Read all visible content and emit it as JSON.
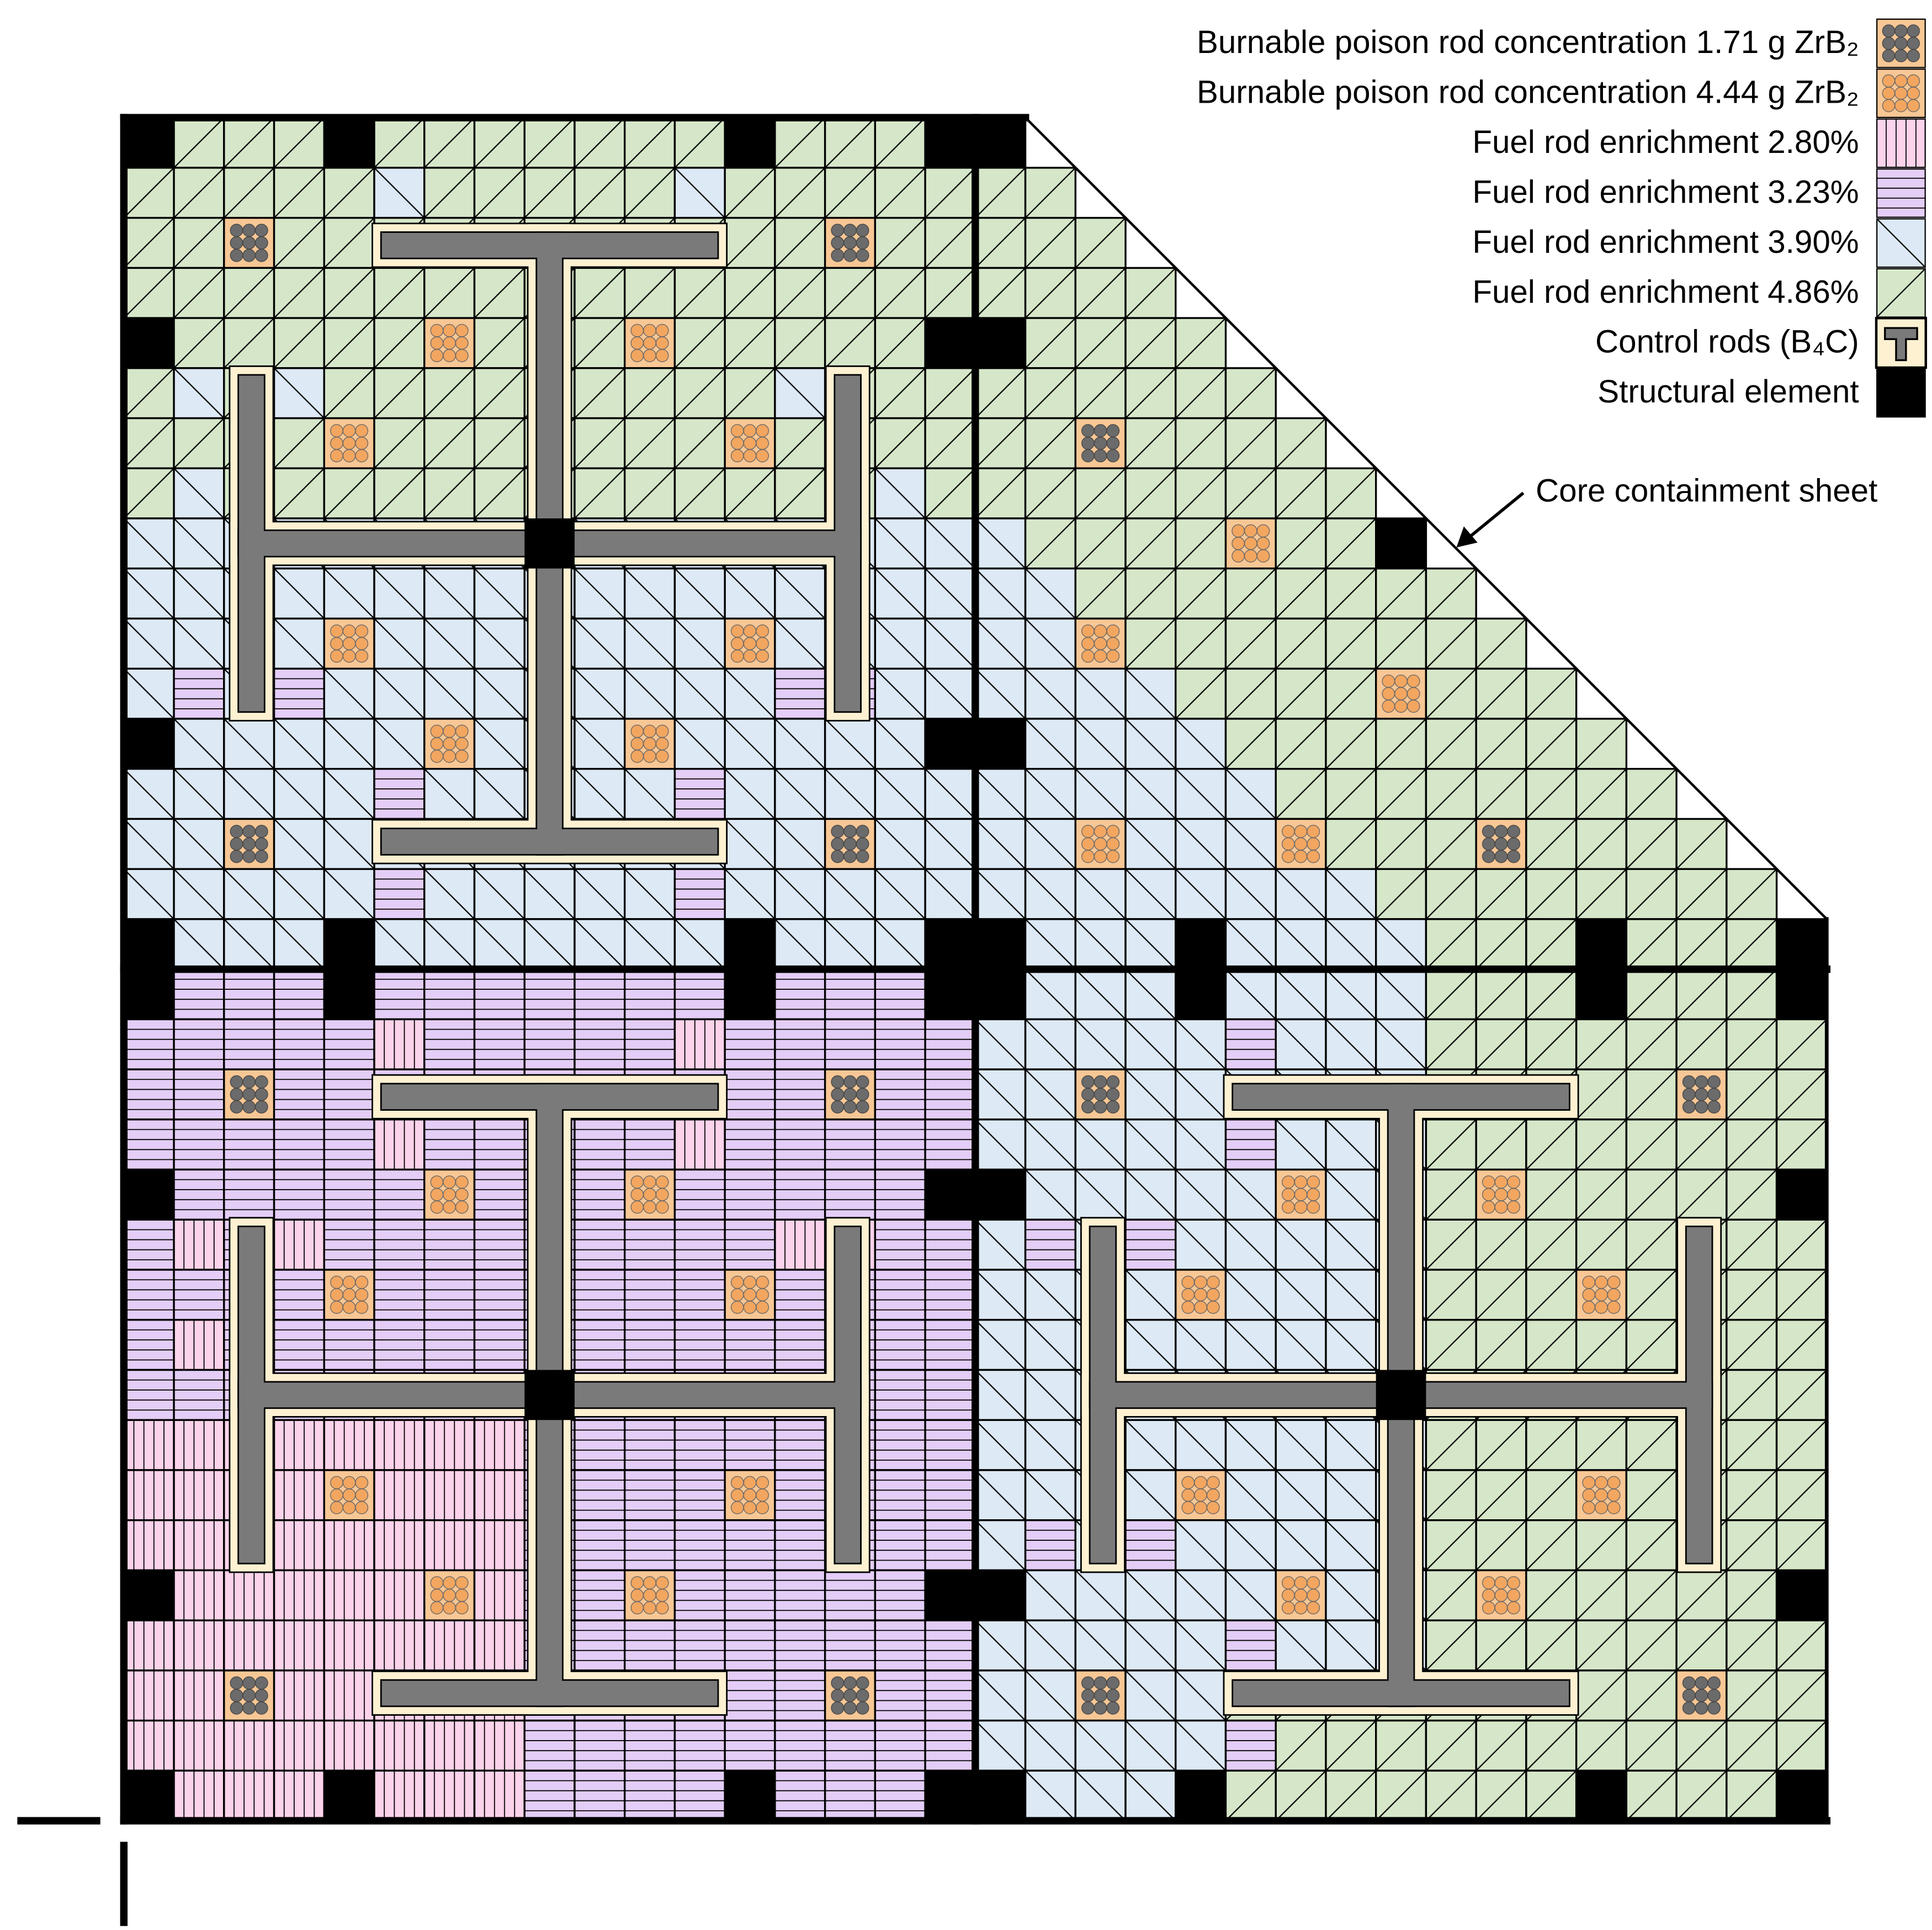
{
  "legend": [
    {
      "label": "Burnable poison rod concentration 1.71 g ZrB₂"
    },
    {
      "label": "Burnable poison rod concentration 4.44 g ZrB₂"
    },
    {
      "label": "Fuel rod enrichment 2.80%"
    },
    {
      "label": "Fuel rod enrichment 3.23%"
    },
    {
      "label": "Fuel rod enrichment 3.90%"
    },
    {
      "label": "Fuel rod enrichment 4.86%"
    },
    {
      "label": "Control rods (B₄C)"
    },
    {
      "label": "Structural element"
    }
  ],
  "annotation": "Core containment sheet"
}
